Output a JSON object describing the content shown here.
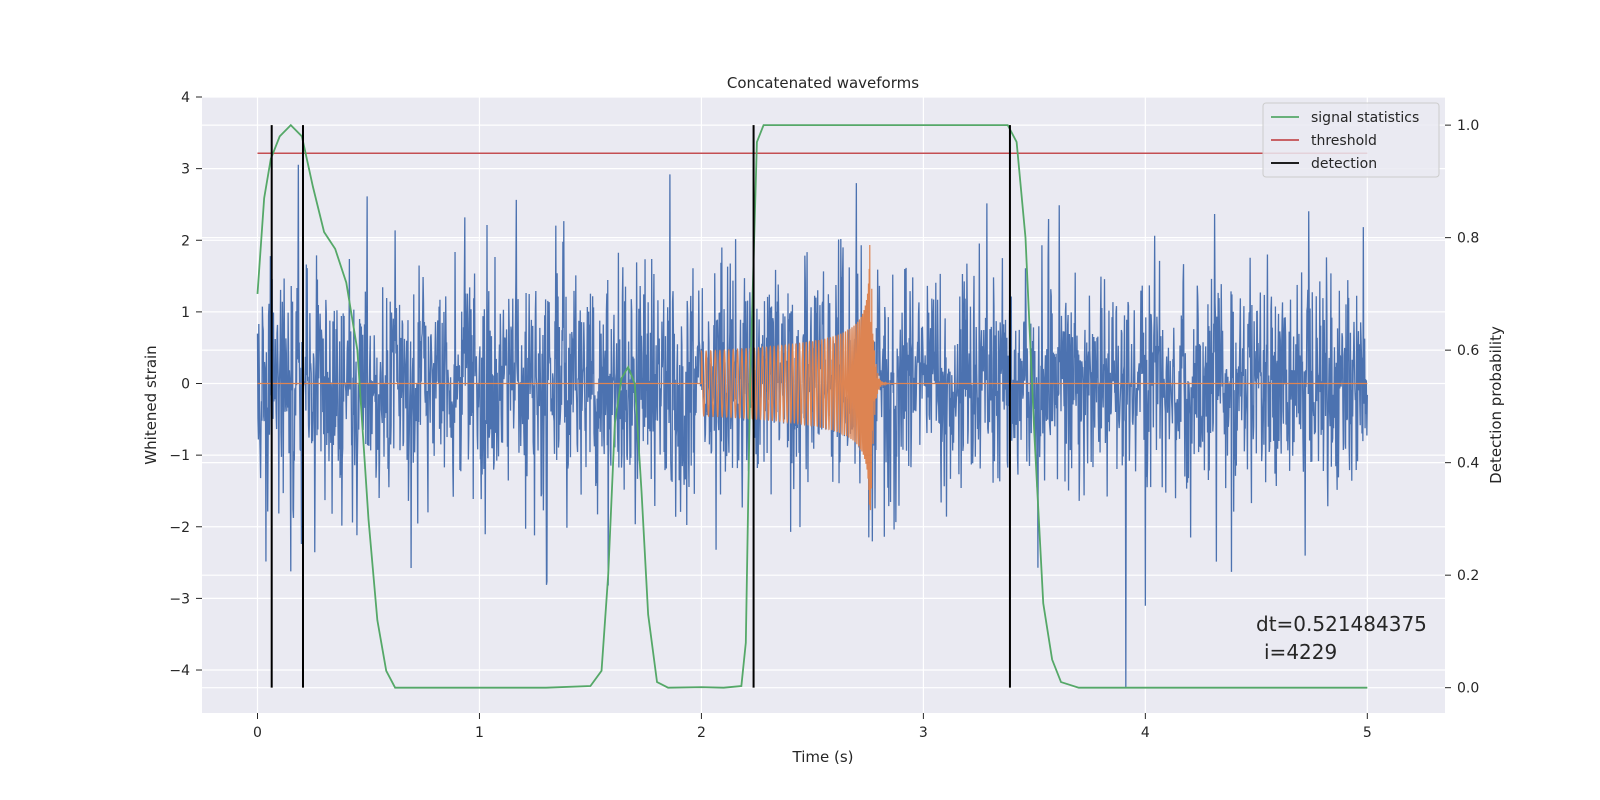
{
  "chart_data": {
    "type": "line",
    "title": "Concatenated waveforms",
    "xlabel": "Time (s)",
    "ylabel": "Whitened strain",
    "y2label": "Detection probability",
    "xlim": [
      -0.25,
      5.35
    ],
    "ylim": [
      -4.6,
      4.0
    ],
    "y2lim": [
      -0.045,
      1.05
    ],
    "xticks": [
      0,
      1,
      2,
      3,
      4,
      5
    ],
    "yticks": [
      -4,
      -3,
      -2,
      -1,
      0,
      1,
      2,
      3,
      4
    ],
    "y2ticks": [
      0.0,
      0.2,
      0.4,
      0.6,
      0.8,
      1.0
    ],
    "grid": true,
    "legend_position": "top-right",
    "colors": {
      "strain": "#4c72b0",
      "template": "#dd8452",
      "signal": "#55a868",
      "threshold": "#c44e52",
      "detection": "#000000",
      "axes_bg": "#eaeaf2",
      "grid": "#ffffff"
    },
    "series": [
      {
        "name": "signal statistics",
        "axis": "right",
        "x": [
          0.0,
          0.03,
          0.06,
          0.1,
          0.15,
          0.2,
          0.25,
          0.3,
          0.35,
          0.4,
          0.45,
          0.5,
          0.54,
          0.58,
          0.62,
          0.7,
          1.0,
          1.3,
          1.5,
          1.55,
          1.58,
          1.61,
          1.64,
          1.67,
          1.7,
          1.73,
          1.76,
          1.8,
          1.85,
          2.0,
          2.1,
          2.18,
          2.2,
          2.22,
          2.25,
          2.28,
          2.3,
          2.5,
          3.0,
          3.3,
          3.38,
          3.42,
          3.46,
          3.5,
          3.54,
          3.58,
          3.62,
          3.7,
          4.0,
          4.5,
          5.0
        ],
        "y": [
          0.7,
          0.87,
          0.94,
          0.98,
          1.0,
          0.98,
          0.89,
          0.81,
          0.78,
          0.72,
          0.6,
          0.3,
          0.12,
          0.03,
          0.0,
          0.0,
          0.0,
          0.0,
          0.003,
          0.03,
          0.2,
          0.47,
          0.55,
          0.57,
          0.54,
          0.35,
          0.13,
          0.01,
          0.0,
          0.001,
          0.0,
          0.003,
          0.08,
          0.55,
          0.97,
          1.0,
          1.0,
          1.0,
          1.0,
          1.0,
          1.0,
          0.97,
          0.8,
          0.45,
          0.15,
          0.05,
          0.01,
          0.0,
          0.0,
          0.0,
          0.0
        ]
      },
      {
        "name": "threshold",
        "axis": "right",
        "x": [
          0.0,
          5.0
        ],
        "y": [
          0.95,
          0.95
        ]
      },
      {
        "name": "detection",
        "axis": "right",
        "x": [
          0.064,
          0.205,
          2.235,
          3.39
        ],
        "y_range": [
          0.0,
          1.0
        ]
      }
    ],
    "strain_noise": {
      "axis": "left",
      "x_range": [
        0.0,
        5.0
      ],
      "typical_range": [
        -1.5,
        1.5
      ],
      "peak_range": [
        -4.25,
        3.6
      ]
    },
    "template_chirp": {
      "axis": "left",
      "x_range": [
        2.0,
        2.8
      ],
      "merger_time": 2.76,
      "start_amplitude": 0.45,
      "peak_amplitude": 2.6
    },
    "annotations": [
      "dt=0.521484375",
      "i=4229"
    ]
  }
}
